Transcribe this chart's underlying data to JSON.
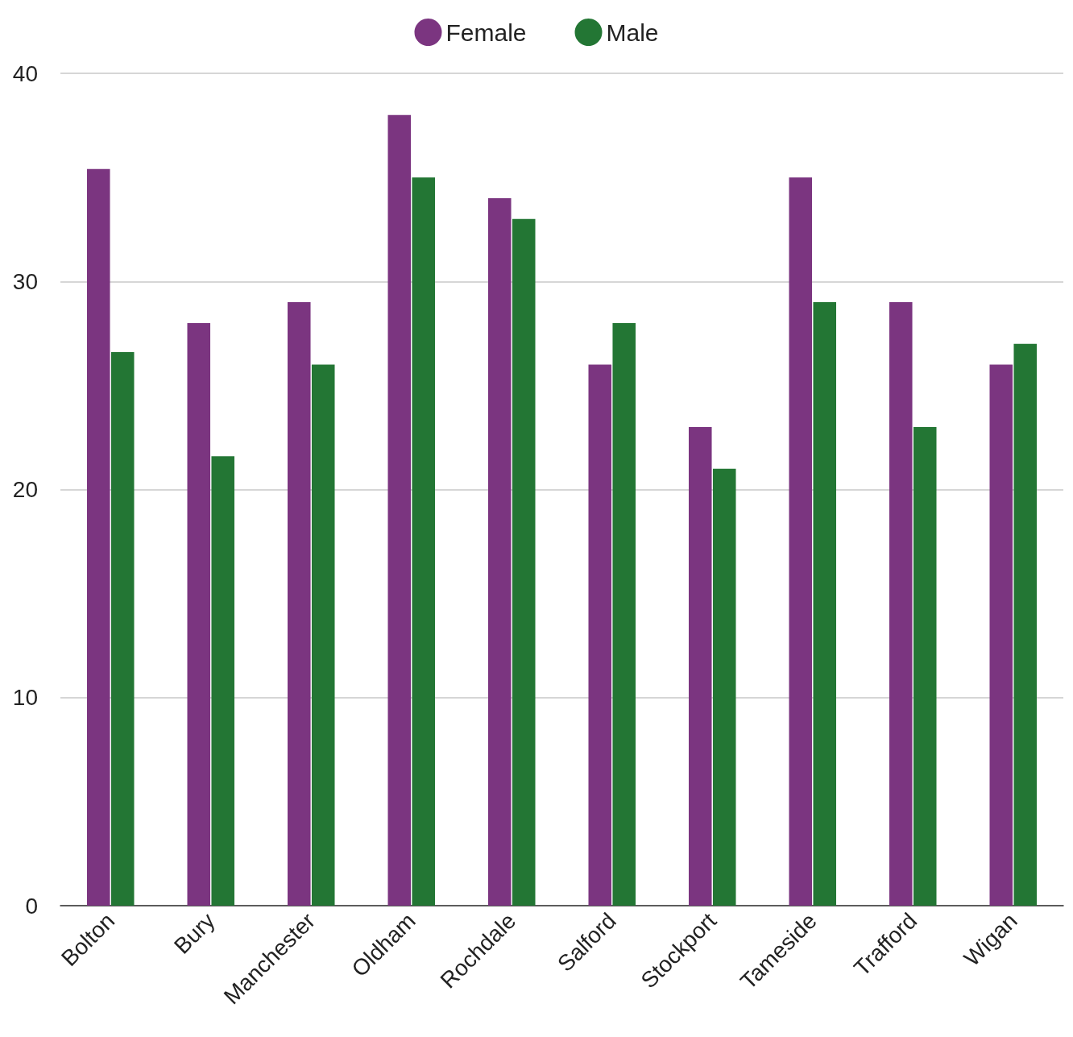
{
  "chart_data": {
    "type": "bar",
    "categories": [
      "Bolton",
      "Bury",
      "Manchester",
      "Oldham",
      "Rochdale",
      "Salford",
      "Stockport",
      "Tameside",
      "Trafford",
      "Wigan"
    ],
    "series": [
      {
        "name": "Female",
        "color": "#7b3580",
        "values": [
          35.4,
          28,
          29,
          38,
          34,
          26,
          23,
          35,
          29,
          26
        ]
      },
      {
        "name": "Male",
        "color": "#237634",
        "values": [
          26.6,
          21.6,
          26,
          35,
          33,
          28,
          21,
          29,
          23,
          27
        ]
      }
    ],
    "ylim": [
      0,
      40
    ],
    "yticks": [
      0,
      10,
      20,
      30,
      40
    ],
    "grid": "y",
    "legend": "top"
  }
}
